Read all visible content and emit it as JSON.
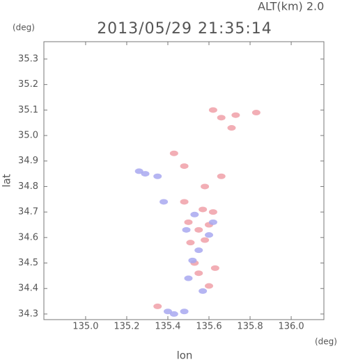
{
  "chart_data": {
    "type": "scatter",
    "title": "2013/05/29 21:35:14",
    "subtitle": "ALT(km) 2.0",
    "xlabel": "lon",
    "ylabel": "lat",
    "xunit": "(deg)",
    "yunit": "(deg)",
    "xlim": [
      134.797,
      136.159
    ],
    "ylim": [
      34.278,
      35.368
    ],
    "xticks": [
      {
        "value": 135,
        "label": "135.0"
      },
      135.2,
      135.4,
      135.6,
      135.8,
      {
        "value": 136,
        "label": "136.0"
      }
    ],
    "yticks": [
      34.3,
      34.4,
      34.5,
      34.6,
      34.7,
      34.8,
      34.9,
      {
        "value": 35,
        "label": "35.0"
      },
      35.1,
      35.2,
      35.3
    ],
    "series": [
      {
        "color": "#f0a0a8",
        "x": [
          135.62,
          135.73,
          135.83,
          135.71,
          135.66,
          135.43,
          135.48,
          135.58,
          135.66,
          135.57,
          135.5,
          135.55,
          135.6,
          135.51,
          135.58,
          135.53,
          135.63,
          135.6,
          135.55,
          135.35,
          135.48,
          135.62
        ],
        "y": [
          35.1,
          35.08,
          35.09,
          35.03,
          35.07,
          34.93,
          34.88,
          34.8,
          34.84,
          34.71,
          34.66,
          34.63,
          34.65,
          34.58,
          34.59,
          34.5,
          34.48,
          34.41,
          34.46,
          34.33,
          34.74,
          34.7
        ]
      },
      {
        "color": "#a8a8f0",
        "x": [
          135.29,
          135.26,
          135.35,
          135.38,
          135.53,
          135.49,
          135.6,
          135.55,
          135.52,
          135.5,
          135.57,
          135.43,
          135.48,
          135.4,
          135.62
        ],
        "y": [
          34.85,
          34.86,
          34.84,
          34.74,
          34.69,
          34.63,
          34.61,
          34.55,
          34.51,
          34.44,
          34.39,
          34.3,
          34.31,
          34.31,
          34.66
        ]
      }
    ]
  }
}
